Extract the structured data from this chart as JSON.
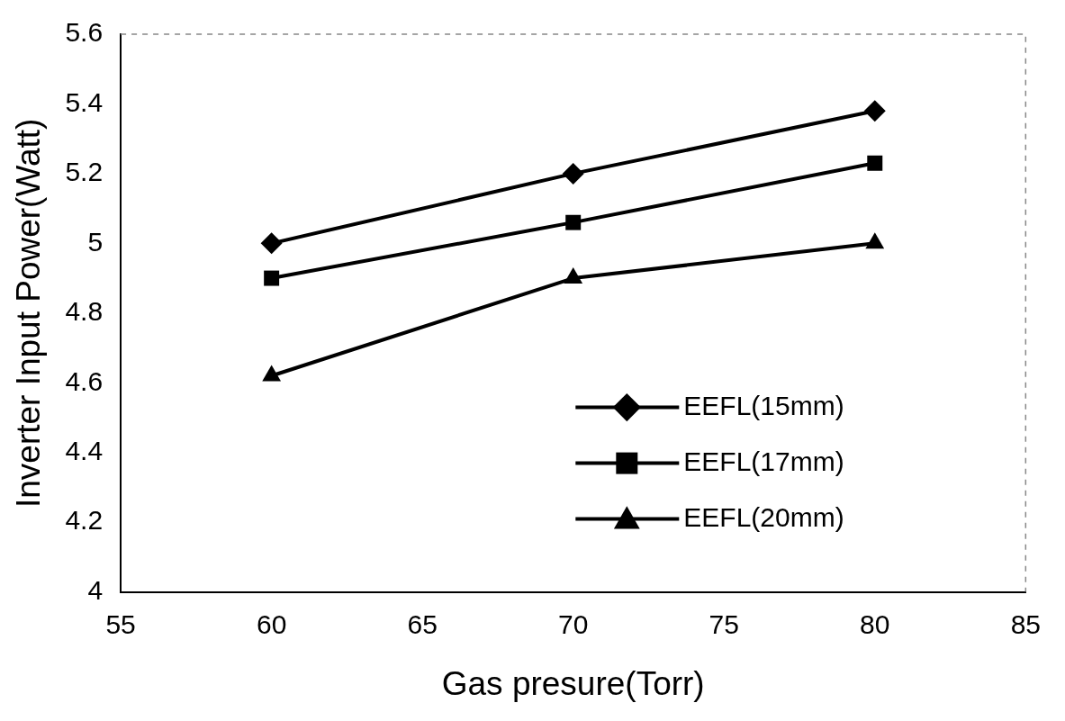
{
  "chart_data": {
    "type": "line",
    "xlabel": "Gas presure(Torr)",
    "ylabel": "Inverter Input Power(Watt)",
    "x": [
      60,
      70,
      80
    ],
    "xlim": [
      55,
      85
    ],
    "xticks": [
      55,
      60,
      65,
      70,
      75,
      80,
      85
    ],
    "ylim": [
      4,
      5.6
    ],
    "yticks": [
      4,
      4.2,
      4.4,
      4.6,
      4.8,
      5,
      5.2,
      5.4,
      5.6
    ],
    "grid": false,
    "legend": "bottom right",
    "line_style": "solid",
    "series": [
      {
        "name": "EEFL(15mm)",
        "color": "#000000",
        "marker": "diamond",
        "values": [
          5.0,
          5.2,
          5.38
        ]
      },
      {
        "name": "EEFL(17mm)",
        "color": "#000000",
        "marker": "square",
        "values": [
          4.9,
          5.06,
          5.23
        ]
      },
      {
        "name": "EEFL(20mm)",
        "color": "#000000",
        "marker": "triangle",
        "values": [
          4.62,
          4.9,
          5.0
        ]
      }
    ]
  }
}
